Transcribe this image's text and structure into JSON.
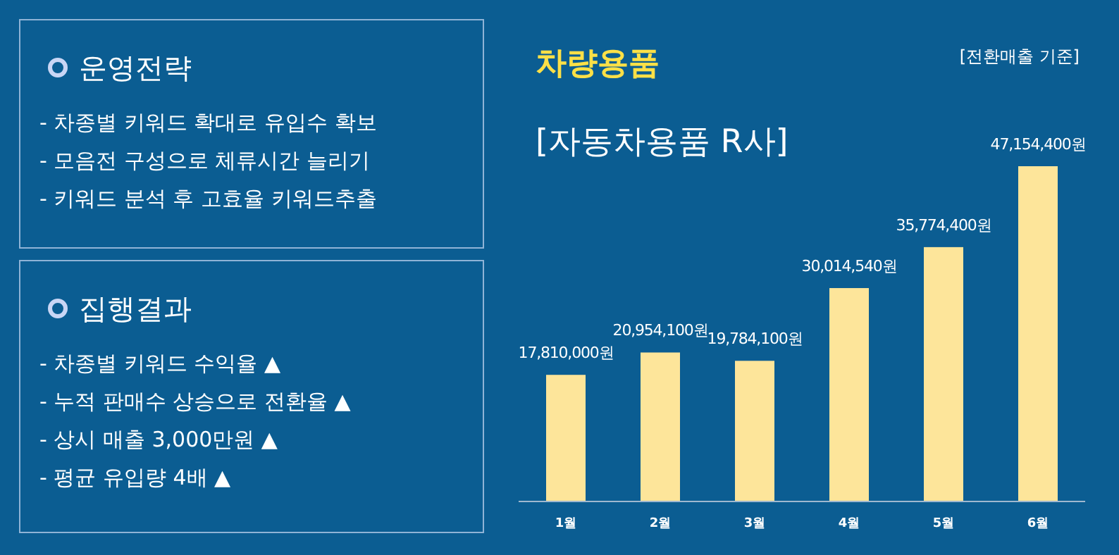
{
  "chart_data": [
    {
      "type": "other",
      "title": "운영전략",
      "annotations": [
        "- 차종별 키워드 확대로 유입수 확보",
        "- 모음전 구성으로 체류시간 늘리기",
        "- 키워드 분석 후 고효율 키워드추출"
      ]
    },
    {
      "type": "other",
      "title": "집행결과",
      "annotations": [
        "- 차종별 키워드 수익율 ▲",
        "- 누적 판매수 상승으로 전환율 ▲",
        "- 상시 매출 3,000만원 ▲",
        "- 평균 유입량 4배 ▲"
      ]
    },
    {
      "type": "bar",
      "title": "차량용품",
      "subtitle": "[자동차용품 R사]",
      "annotations": [
        "[전환매출 기준]"
      ],
      "categories": [
        "1월",
        "2월",
        "3월",
        "4월",
        "5월",
        "6월"
      ],
      "values": [
        17810000,
        20954100,
        19784100,
        30014540,
        35774400,
        47154400
      ],
      "value_labels": [
        "17,810,000원",
        "20,954,100원",
        "19,784,100원",
        "30,014,540원",
        "35,774,400원",
        "47,154,400원"
      ],
      "color": "#fde59a"
    }
  ]
}
